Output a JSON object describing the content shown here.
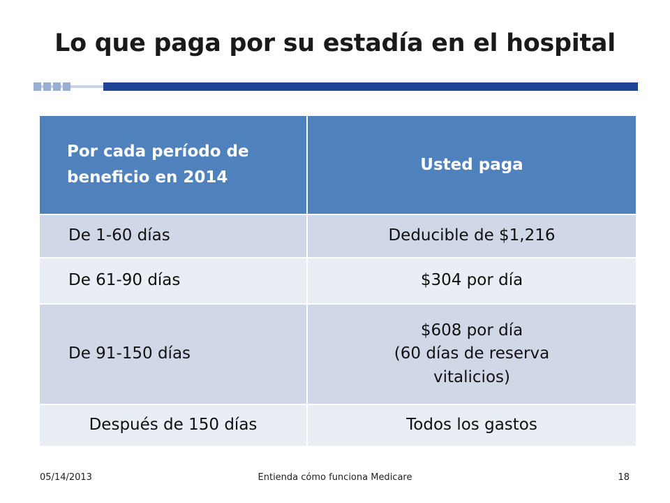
{
  "slide": {
    "title": "Lo que paga por su estadía en el hospital"
  },
  "table": {
    "headers": [
      "Por cada período de beneficio en 2014",
      "Usted paga"
    ],
    "rows": [
      {
        "period": "De 1-60 días",
        "pay": [
          "Deducible de $1,216"
        ]
      },
      {
        "period": "De  61-90 días",
        "pay": [
          "$304 por día"
        ]
      },
      {
        "period": "De 91-150 días",
        "pay": [
          "$608 por día",
          "(60 días de reserva",
          "vitalicios)"
        ]
      },
      {
        "period": "Después de 150 días",
        "pay": [
          "Todos los gastos"
        ]
      }
    ]
  },
  "footer": {
    "date": "05/14/2013",
    "center": "Entienda cómo funciona Medicare",
    "page": "18"
  },
  "colors": {
    "header_bg": "#4f81bd",
    "row_dark": "#d0d8e8",
    "row_light": "#e9edf4",
    "accent_bar": "#1f4696"
  }
}
